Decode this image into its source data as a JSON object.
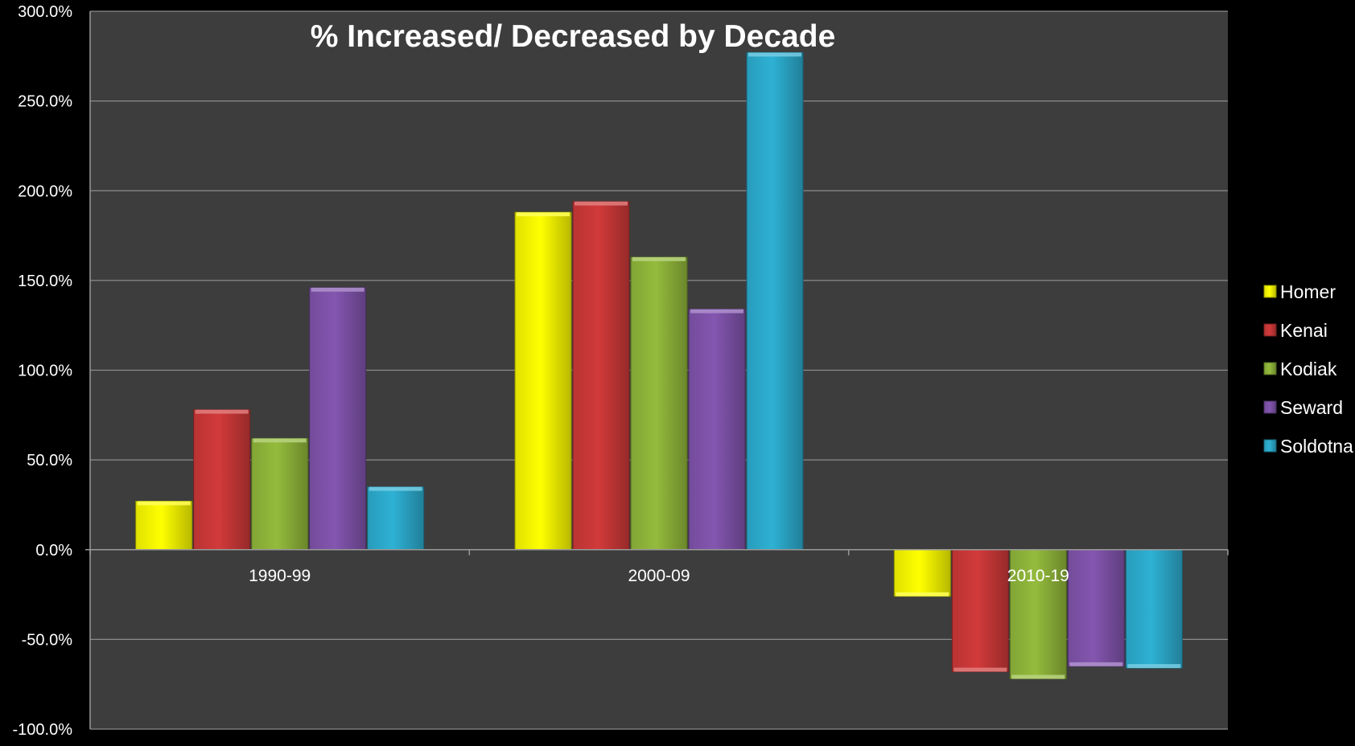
{
  "chart_data": {
    "type": "bar",
    "title": "% Increased/ Decreased by Decade",
    "xlabel": "",
    "ylabel": "",
    "categories": [
      "1990-99",
      "2000-09",
      "2010-19"
    ],
    "series": [
      {
        "name": "Homer",
        "values": [
          27,
          188,
          -26
        ]
      },
      {
        "name": "Kenai",
        "values": [
          78,
          194,
          -68
        ]
      },
      {
        "name": "Kodiak",
        "values": [
          62,
          163,
          -72
        ]
      },
      {
        "name": "Seward",
        "values": [
          146,
          134,
          -65
        ]
      },
      {
        "name": "Soldotna",
        "values": [
          35,
          277,
          -66
        ]
      }
    ],
    "ylim": [
      -100,
      300
    ],
    "yticks": [
      -100,
      -50,
      0,
      50,
      100,
      150,
      200,
      250,
      300
    ],
    "ytick_labels": [
      "-100.0%",
      "-50.0%",
      "0.0%",
      "50.0%",
      "100.0%",
      "150.0%",
      "200.0%",
      "250.0%",
      "300.0%"
    ],
    "grid": true,
    "legend_position": "right",
    "colors": {
      "Homer": "#ffff00",
      "Kenai": "#d23a3a",
      "Kodiak": "#94bb3c",
      "Seward": "#8456b0",
      "Soldotna": "#2eb1d4",
      "plot_background": "#3d3d3d",
      "page_background": "#000000",
      "gridline": "#8c8c8c"
    }
  }
}
